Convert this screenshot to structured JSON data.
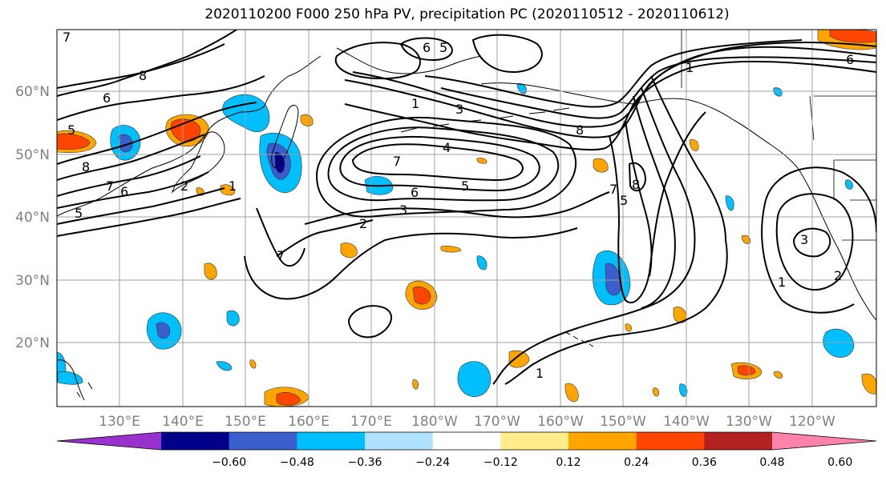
{
  "title": "2020110200 F000 250 hPa PV, precipitation PC (2020110512 - 2020110612)",
  "longitude_labels": [
    "130°E",
    "140°E",
    "150°E",
    "160°E",
    "170°E",
    "180°W",
    "170°W",
    "160°W",
    "150°W",
    "140°W",
    "130°W",
    "120°W"
  ],
  "latitude_labels": [
    "60°N",
    "50°N",
    "40°N",
    "30°N",
    "20°N"
  ],
  "colorbar": {
    "colors": [
      "#9932cc",
      "#00008b",
      "#3a5fcd",
      "#00bfff",
      "#b0e2ff",
      "#ffffff",
      "#ffec8b",
      "#ffa500",
      "#ff4500",
      "#b22222",
      "#ff82ab"
    ],
    "labels": [
      "−0.60",
      "−0.48",
      "−0.36",
      "−0.24",
      "−0.12",
      "0.12",
      "0.24",
      "0.36",
      "0.48",
      "0.60"
    ]
  },
  "contour_labels": [
    "7",
    "8",
    "6",
    "5",
    "8",
    "7",
    "6",
    "5",
    "2",
    "1",
    "3",
    "4",
    "7",
    "6",
    "5",
    "3",
    "2",
    "6",
    "5",
    "8",
    "7",
    "8",
    "5",
    "1",
    "7",
    "6",
    "1",
    "3",
    "1",
    "2",
    "1"
  ],
  "colors": {
    "contour": "#000000",
    "coast": "#000000",
    "grid": "#a0a0a0",
    "tick_text": "#808080"
  }
}
